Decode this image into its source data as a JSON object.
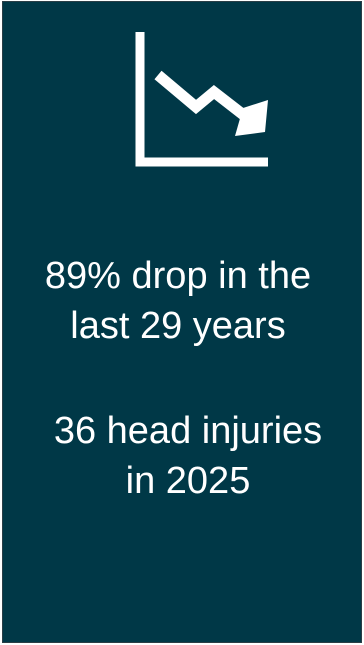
{
  "card": {
    "background": "#003847",
    "foreground": "#ffffff"
  },
  "icon": {
    "name": "downward-trend-chart-icon"
  },
  "stats": [
    {
      "line_1": "89% drop in the",
      "line_2": "last 29 years"
    },
    {
      "line_1": "36 head injuries",
      "line_2": "in 2025"
    }
  ]
}
